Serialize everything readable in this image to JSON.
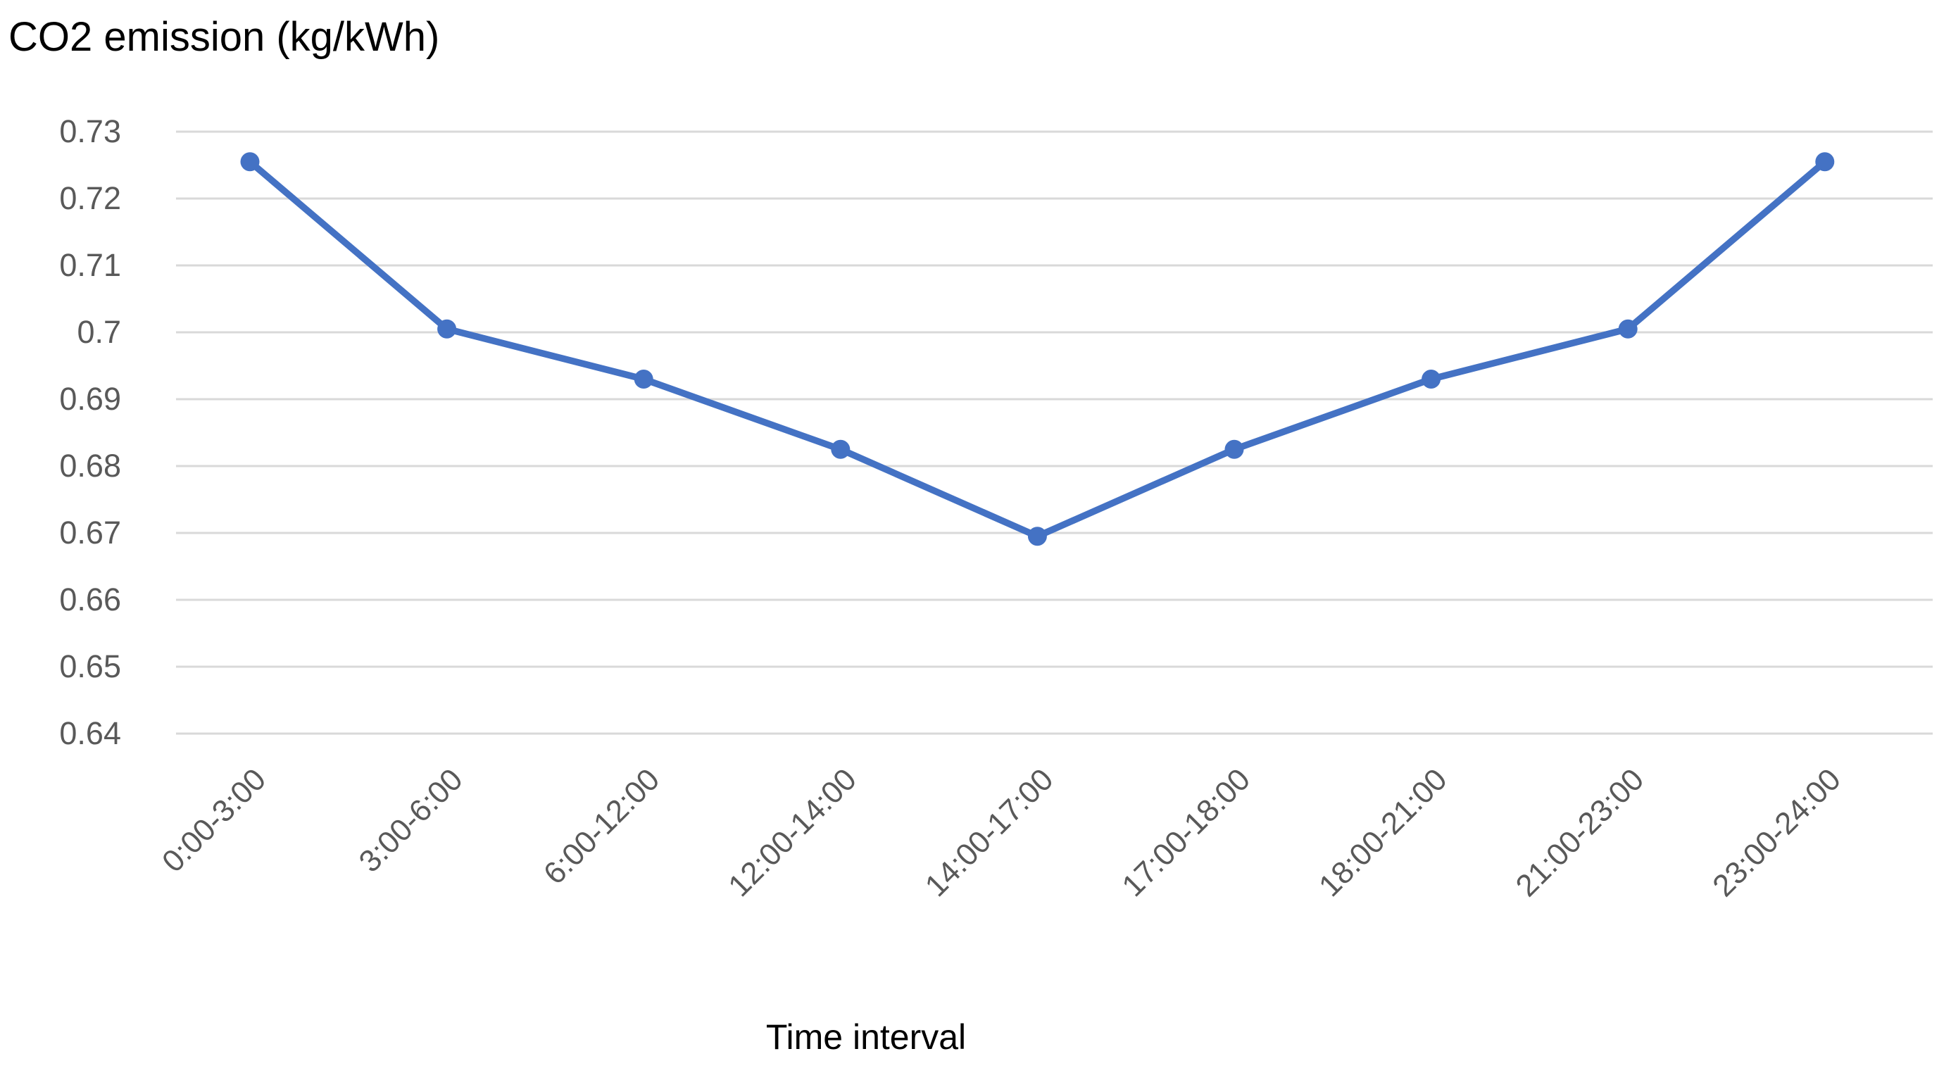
{
  "chart_data": {
    "type": "line",
    "title": "CO2 emission (kg/kWh)",
    "xlabel": "Time interval",
    "categories": [
      "0:00-3:00",
      "3:00-6:00",
      "6:00-12:00",
      "12:00-14:00",
      "14:00-17:00",
      "17:00-18:00",
      "18:00-21:00",
      "21:00-23:00",
      "23:00-24:00"
    ],
    "values": [
      0.7255,
      0.7005,
      0.693,
      0.6825,
      0.6695,
      0.6825,
      0.693,
      0.7005,
      0.7255
    ],
    "ylim": [
      0.64,
      0.73
    ],
    "ytick_step": 0.01,
    "ytick_labels": [
      "0.73",
      "0.72",
      "0.71",
      "0.7",
      "0.69",
      "0.68",
      "0.67",
      "0.66",
      "0.65",
      "0.64"
    ],
    "grid": "horizontal",
    "legend": "none",
    "marker": "circle",
    "colors": {
      "line": "#4472C4",
      "marker": "#4472C4",
      "gridline": "#D9D9D9",
      "tick_label": "#595959",
      "title": "#000000",
      "axis_title": "#000000",
      "background": "#FFFFFF"
    }
  }
}
